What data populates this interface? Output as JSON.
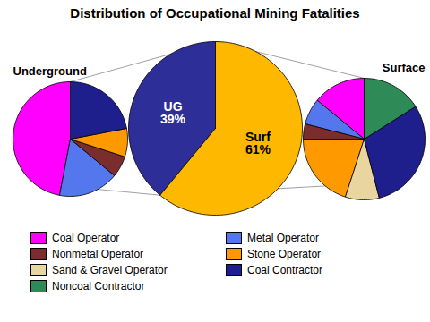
{
  "chart_data": [
    {
      "type": "pie",
      "title": "Distribution of Occupational Mining Fatalities",
      "values": [
        39,
        61
      ],
      "colors": [
        "#2E2E99",
        "#FFB800"
      ],
      "data_labels": true,
      "value_labels": [
        "UG\n39%",
        "Surf\n61%"
      ]
    },
    {
      "type": "pie",
      "title": "Underground",
      "categories": [
        "Coal Operator",
        "Metal Operator",
        "Nonmetal Operator",
        "Stone Operator",
        "Coal Contractor"
      ],
      "values": [
        47,
        17,
        6,
        8,
        22
      ],
      "colors": [
        "#FF00FF",
        "#5577EE",
        "#7B2D2D",
        "#FF9900",
        "#1E1E8C"
      ]
    },
    {
      "type": "pie",
      "title": "Surface",
      "categories": [
        "Coal Operator",
        "Metal Operator",
        "Nonmetal Operator",
        "Stone Operator",
        "Sand & Gravel Operator",
        "Coal Contractor",
        "Noncoal Contractor"
      ],
      "values": [
        14,
        7,
        4,
        20,
        9,
        30,
        16
      ],
      "colors": [
        "#FF00FF",
        "#5577EE",
        "#7B2D2D",
        "#FF9900",
        "#E8D5A0",
        "#1E1E8C",
        "#2E8B57"
      ],
      "legend": "bottom"
    }
  ]
}
